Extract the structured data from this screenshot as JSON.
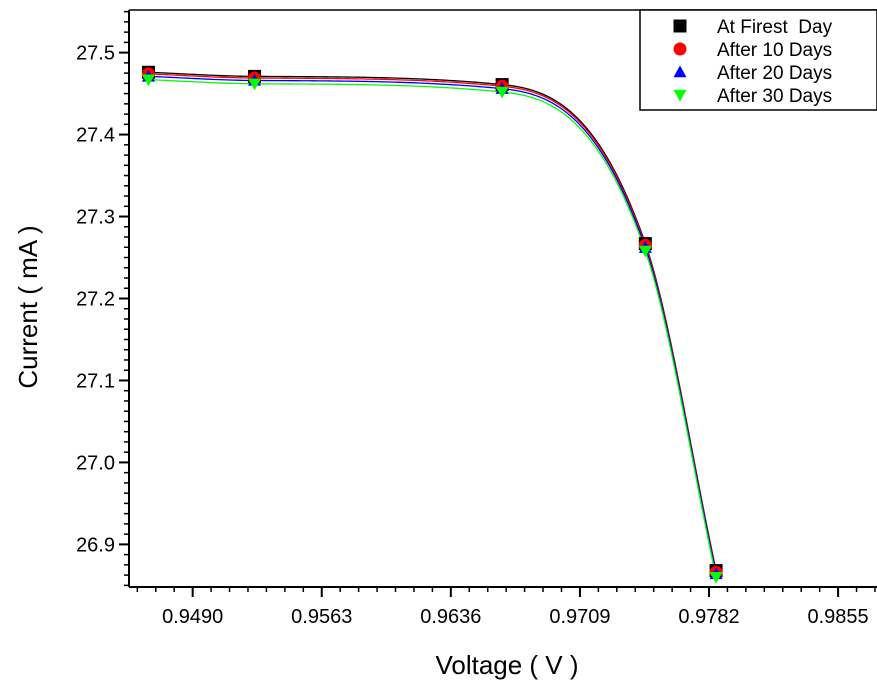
{
  "chart_data": {
    "type": "scatter",
    "title": "",
    "xlabel": "Voltage ( V )",
    "ylabel": "Current ( mA )",
    "xlim": [
      0.9454,
      0.9877
    ],
    "ylim": [
      26.848,
      27.552
    ],
    "xticks": [
      0.949,
      0.9563,
      0.9636,
      0.9709,
      0.9782,
      0.9855
    ],
    "xtick_labels": [
      "0.9490",
      "0.9563",
      "0.9636",
      "0.9709",
      "0.9782",
      "0.9855"
    ],
    "yticks": [
      26.9,
      27.0,
      27.1,
      27.2,
      27.3,
      27.4,
      27.5
    ],
    "ytick_labels": [
      "26.9",
      "27.0",
      "27.1",
      "27.2",
      "27.3",
      "27.4",
      "27.5"
    ],
    "grid": false,
    "legend_position": "top-right",
    "fit_curves": true,
    "series": [
      {
        "name": "At Firest  Day",
        "marker": "square",
        "color": "#000000",
        "x": [
          0.9465,
          0.9525,
          0.9665,
          0.9746,
          0.9786
        ],
        "y": [
          27.476,
          27.471,
          27.461,
          27.267,
          26.868
        ]
      },
      {
        "name": "After 10 Days",
        "marker": "circle",
        "color": "#ff0000",
        "x": [
          0.9465,
          0.9525,
          0.9665,
          0.9746,
          0.9786
        ],
        "y": [
          27.474,
          27.469,
          27.459,
          27.265,
          26.866
        ]
      },
      {
        "name": "After 20 Days",
        "marker": "triangle-up",
        "color": "#0000ff",
        "x": [
          0.9465,
          0.9525,
          0.9665,
          0.9746,
          0.9786
        ],
        "y": [
          27.471,
          27.466,
          27.456,
          27.262,
          26.864
        ]
      },
      {
        "name": "After 30 Days",
        "marker": "triangle-down",
        "color": "#00ff00",
        "x": [
          0.9465,
          0.9525,
          0.9665,
          0.9746,
          0.9786
        ],
        "y": [
          27.467,
          27.462,
          27.452,
          27.258,
          26.86
        ]
      }
    ]
  }
}
